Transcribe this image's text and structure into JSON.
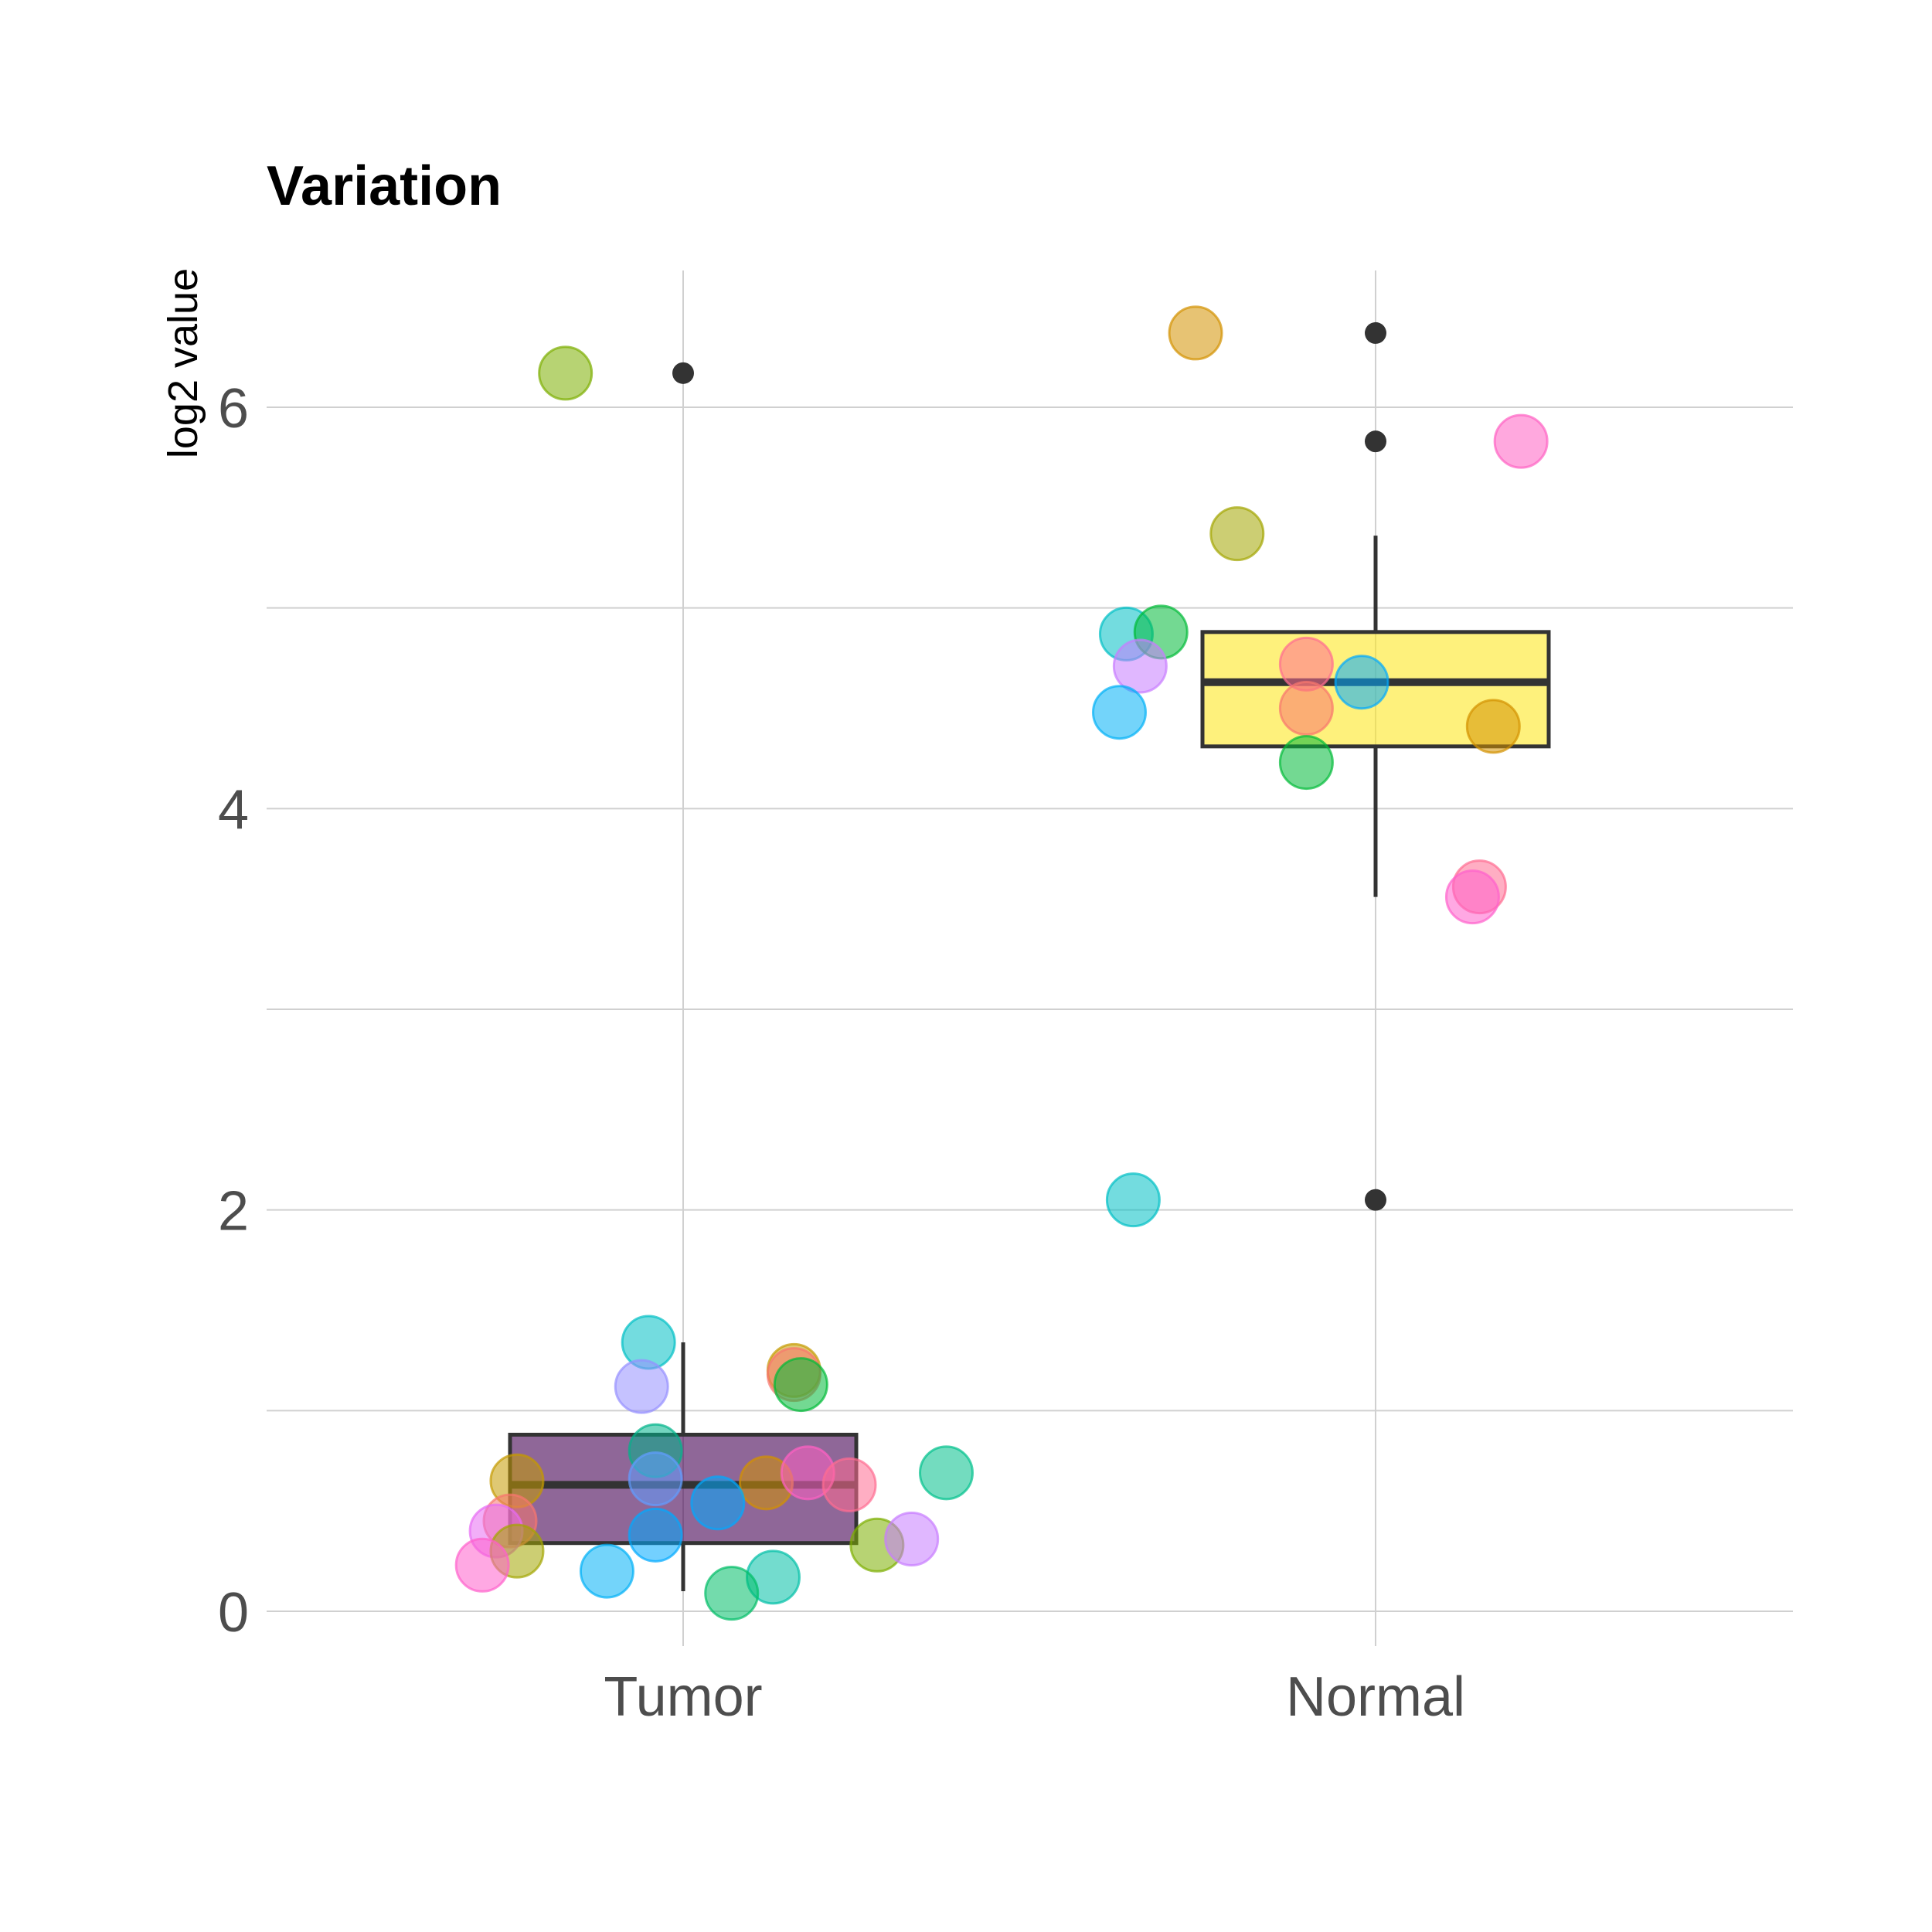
{
  "chart_data": {
    "type": "box",
    "title": "Variation",
    "xlabel": "",
    "ylabel": "log2 value",
    "categories": [
      "Tumor",
      "Normal"
    ],
    "ylim": [
      -0.08,
      6.78
    ],
    "yticks": [
      0,
      2,
      4,
      6
    ],
    "grid": true,
    "legend": "none",
    "boxes": [
      {
        "category": "Tumor",
        "fill": "#440154",
        "q1": 0.34,
        "median": 0.63,
        "q3": 0.88,
        "whisker_low": 0.1,
        "whisker_high": 1.34,
        "outliers": [
          6.17
        ]
      },
      {
        "category": "Normal",
        "fill": "#FDE725",
        "q1": 4.31,
        "median": 4.63,
        "q3": 4.88,
        "whisker_low": 3.56,
        "whisker_high": 5.36,
        "outliers": [
          6.37,
          5.83,
          2.05
        ]
      }
    ],
    "points": [
      {
        "category": "Tumor",
        "x": 0.83,
        "y": 6.17,
        "color": "#7CAE00"
      },
      {
        "category": "Tumor",
        "x": 0.95,
        "y": 1.34,
        "color": "#00BFC4"
      },
      {
        "category": "Tumor",
        "x": 0.94,
        "y": 1.12,
        "color": "#9590FF"
      },
      {
        "category": "Tumor",
        "x": 1.16,
        "y": 1.2,
        "color": "#C49A00"
      },
      {
        "category": "Tumor",
        "x": 1.16,
        "y": 1.18,
        "color": "#F8766D"
      },
      {
        "category": "Tumor",
        "x": 1.17,
        "y": 1.13,
        "color": "#00BA38"
      },
      {
        "category": "Tumor",
        "x": 0.96,
        "y": 0.8,
        "color": "#00B38A"
      },
      {
        "category": "Tumor",
        "x": 0.76,
        "y": 0.65,
        "color": "#C49A00"
      },
      {
        "category": "Tumor",
        "x": 0.96,
        "y": 0.66,
        "color": "#619CFF"
      },
      {
        "category": "Tumor",
        "x": 1.12,
        "y": 0.64,
        "color": "#D39200"
      },
      {
        "category": "Tumor",
        "x": 1.18,
        "y": 0.69,
        "color": "#FF61C3"
      },
      {
        "category": "Tumor",
        "x": 1.24,
        "y": 0.63,
        "color": "#FF6C91"
      },
      {
        "category": "Tumor",
        "x": 1.38,
        "y": 0.69,
        "color": "#00C08B"
      },
      {
        "category": "Tumor",
        "x": 1.05,
        "y": 0.54,
        "color": "#00A9FF"
      },
      {
        "category": "Tumor",
        "x": 0.75,
        "y": 0.45,
        "color": "#F8766D"
      },
      {
        "category": "Tumor",
        "x": 0.73,
        "y": 0.4,
        "color": "#E76BF3"
      },
      {
        "category": "Tumor",
        "x": 0.96,
        "y": 0.38,
        "color": "#00A9FF"
      },
      {
        "category": "Tumor",
        "x": 0.76,
        "y": 0.3,
        "color": "#A3A500"
      },
      {
        "category": "Tumor",
        "x": 1.28,
        "y": 0.33,
        "color": "#7CAE00"
      },
      {
        "category": "Tumor",
        "x": 1.33,
        "y": 0.36,
        "color": "#C77CFF"
      },
      {
        "category": "Tumor",
        "x": 0.71,
        "y": 0.23,
        "color": "#FF61CC"
      },
      {
        "category": "Tumor",
        "x": 0.89,
        "y": 0.2,
        "color": "#00B0F6"
      },
      {
        "category": "Tumor",
        "x": 1.13,
        "y": 0.17,
        "color": "#00BFA6"
      },
      {
        "category": "Tumor",
        "x": 1.07,
        "y": 0.09,
        "color": "#00BE67"
      },
      {
        "category": "Normal",
        "x": 1.74,
        "y": 6.37,
        "color": "#D39200"
      },
      {
        "category": "Normal",
        "x": 2.21,
        "y": 5.83,
        "color": "#FF61C3"
      },
      {
        "category": "Normal",
        "x": 1.8,
        "y": 5.37,
        "color": "#A3A500"
      },
      {
        "category": "Normal",
        "x": 1.64,
        "y": 4.87,
        "color": "#00BFC4"
      },
      {
        "category": "Normal",
        "x": 1.69,
        "y": 4.88,
        "color": "#00BA38"
      },
      {
        "category": "Normal",
        "x": 1.66,
        "y": 4.71,
        "color": "#C77CFF"
      },
      {
        "category": "Normal",
        "x": 1.9,
        "y": 4.72,
        "color": "#FF6C91"
      },
      {
        "category": "Normal",
        "x": 1.98,
        "y": 4.63,
        "color": "#00A9FF"
      },
      {
        "category": "Normal",
        "x": 1.9,
        "y": 4.5,
        "color": "#F8766D"
      },
      {
        "category": "Normal",
        "x": 1.63,
        "y": 4.48,
        "color": "#00B0F6"
      },
      {
        "category": "Normal",
        "x": 2.17,
        "y": 4.41,
        "color": "#D39200"
      },
      {
        "category": "Normal",
        "x": 1.9,
        "y": 4.23,
        "color": "#00BA38"
      },
      {
        "category": "Normal",
        "x": 2.15,
        "y": 3.61,
        "color": "#FF6C91"
      },
      {
        "category": "Normal",
        "x": 2.14,
        "y": 3.56,
        "color": "#FF61CC"
      },
      {
        "category": "Normal",
        "x": 1.65,
        "y": 2.05,
        "color": "#00BFC4"
      }
    ]
  }
}
